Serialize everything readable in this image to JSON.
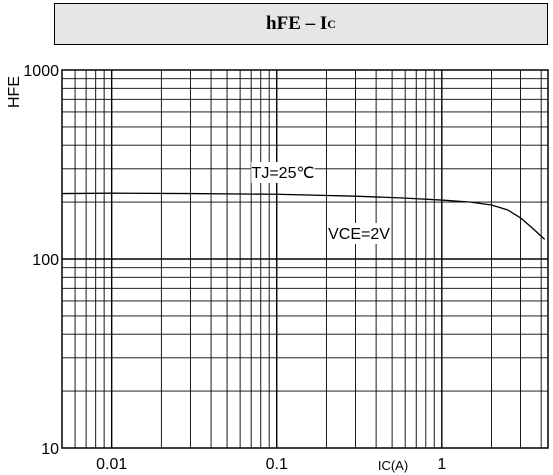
{
  "header": {
    "title_main": "hFE – I",
    "title_sub": "C"
  },
  "chart_data": {
    "type": "line",
    "title": "hFE – IC",
    "xlabel": "IC(A)",
    "ylabel": "HFE",
    "x_scale": "log",
    "y_scale": "log",
    "xlim": [
      0.005,
      4.4
    ],
    "ylim": [
      10,
      1000
    ],
    "grid": true,
    "x_tick_labels": [
      "0.01",
      "0.1",
      "1"
    ],
    "y_tick_labels": [
      "10",
      "100",
      "1000"
    ],
    "annotations": [
      "TJ=25℃",
      "VCE=2V"
    ],
    "series": [
      {
        "x": [
          0.005,
          0.01,
          0.03,
          0.1,
          0.3,
          0.6,
          1.0,
          1.5,
          2.0,
          2.5,
          3.0,
          3.5,
          4.2
        ],
        "y": [
          222,
          223,
          222,
          220,
          215,
          210,
          205,
          200,
          193,
          182,
          165,
          147,
          127
        ]
      }
    ]
  }
}
